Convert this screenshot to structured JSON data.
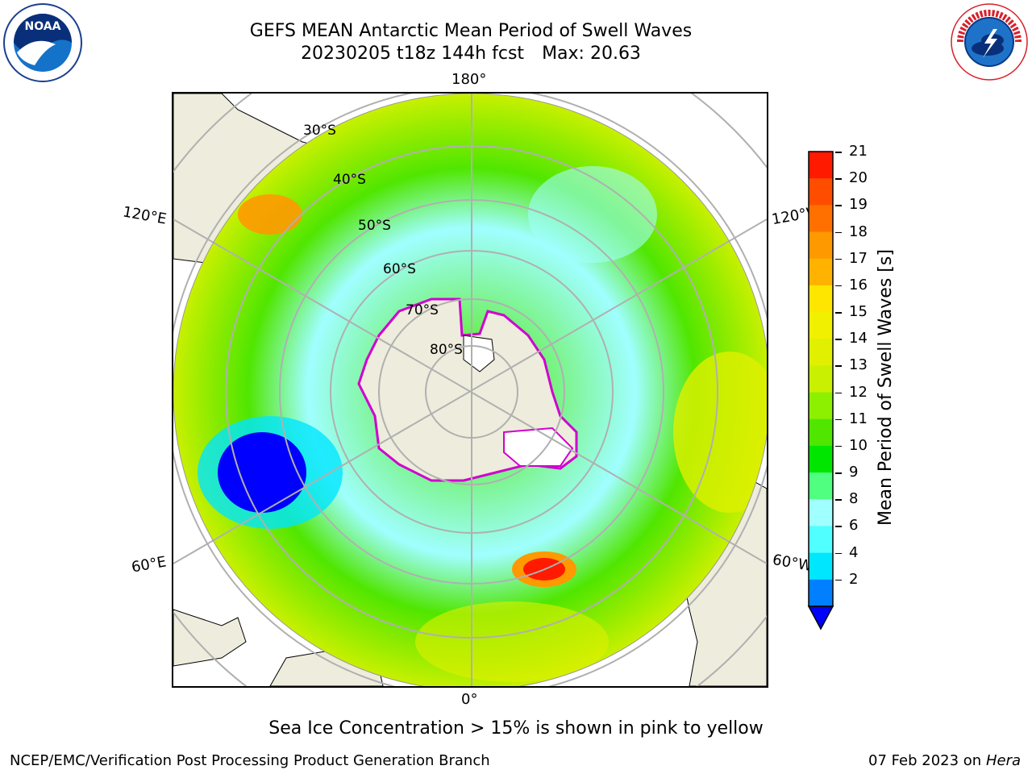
{
  "header": {
    "title_line1": "GEFS MEAN Antarctic Mean Period of Swell Waves",
    "title_date": "20230205 t18z 144h fcst",
    "title_max": "Max: 20.63"
  },
  "map": {
    "lon_labels": {
      "top": "180°",
      "bottom": "0°",
      "left_upper": "120°E",
      "left_lower": "60°E",
      "right_upper": "120°W",
      "right_lower": "60°W"
    },
    "lat_labels": [
      "30°S",
      "40°S",
      "50°S",
      "60°S",
      "70°S",
      "80°S"
    ]
  },
  "colorbar": {
    "label": "Mean Period of Swell Waves [s]",
    "ticks": [
      "21",
      "20",
      "19",
      "18",
      "17",
      "16",
      "15",
      "14",
      "13",
      "12",
      "11",
      "10",
      "9",
      "8",
      "6",
      "4",
      "2"
    ],
    "colors": [
      "#ff1a00",
      "#ff4d00",
      "#ff7000",
      "#ff9900",
      "#ffb300",
      "#ffe600",
      "#f0f000",
      "#e0f000",
      "#c8f000",
      "#8cf000",
      "#50e600",
      "#00e600",
      "#50ff80",
      "#a0ffff",
      "#50ffff",
      "#00e6ff",
      "#0080ff"
    ],
    "under_color": "#0000ff"
  },
  "footer": {
    "note": "Sea Ice Concentration > 15% is shown in pink to yellow",
    "credit": "NCEP/EMC/Verification Post Processing Product Generation Branch",
    "date_prefix": "07 Feb 2023 on",
    "date_machine": "Hera"
  },
  "logos": {
    "left": "noaa-logo",
    "right": "nws-logo"
  }
}
